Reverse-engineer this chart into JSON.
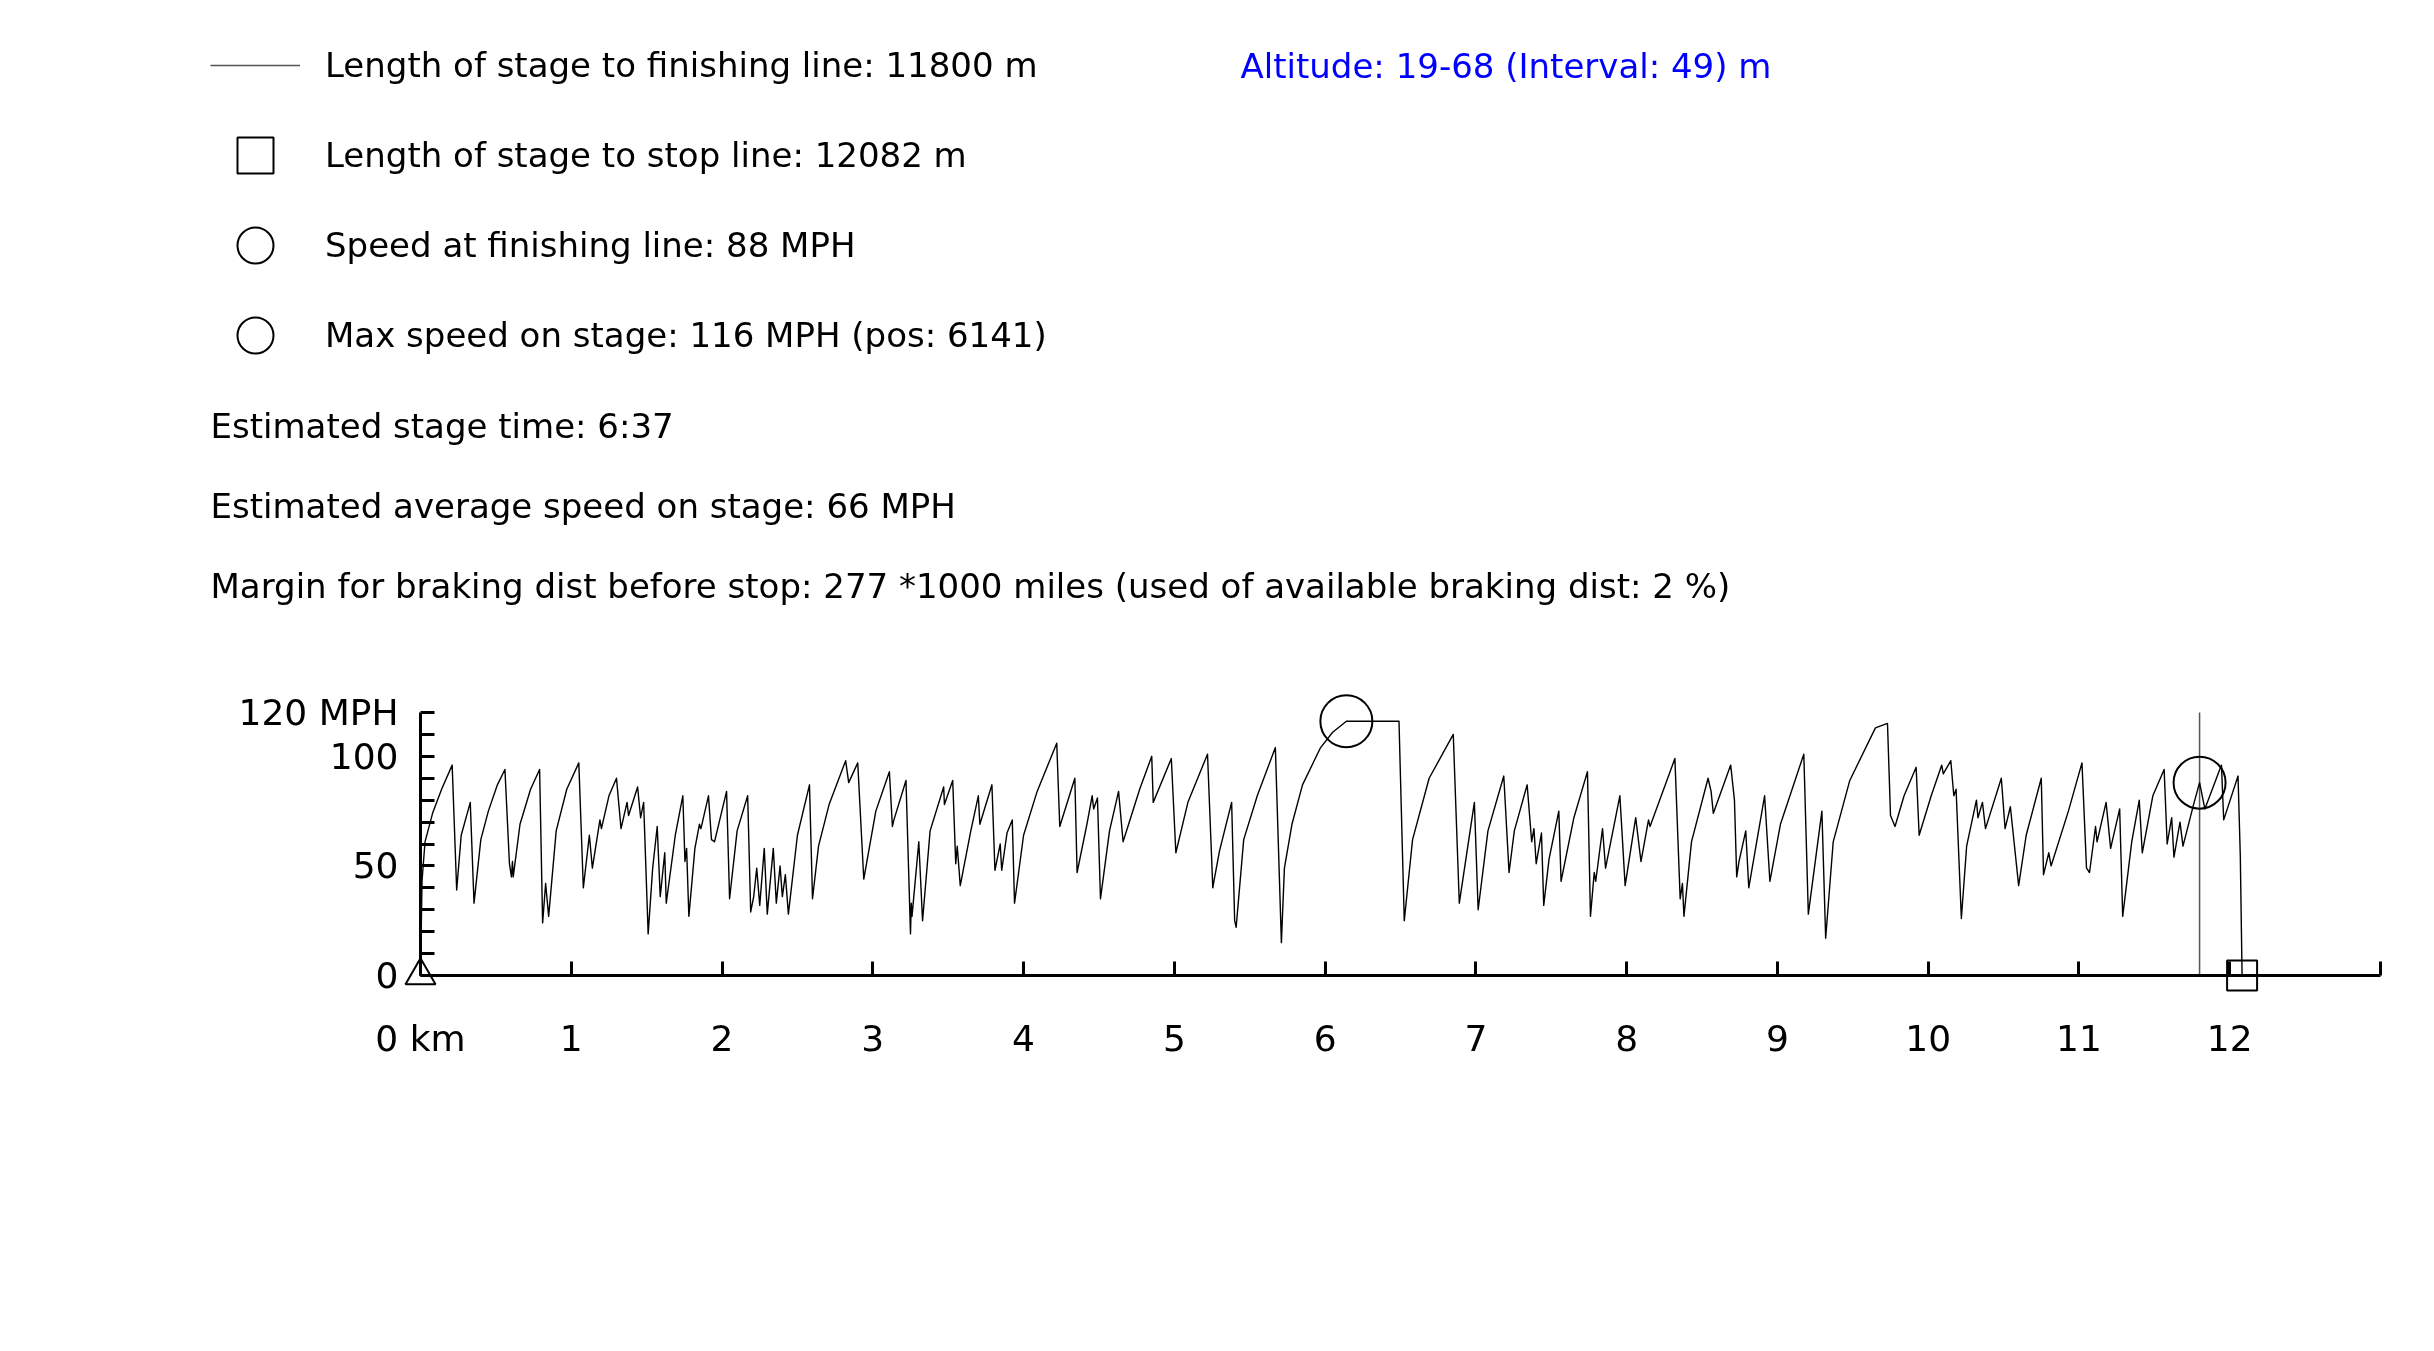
{
  "chart_data": {
    "type": "line",
    "subtitle": "Altitude: 19-68 (Interval: 49) m",
    "annotations": [
      "Estimated stage time: 6:37",
      "Estimated average speed on stage: 66 MPH",
      "Margin for braking dist before stop: 277 *1000 miles (used of available braking dist: 2 %)"
    ],
    "xlim": [
      0,
      13
    ],
    "xticks": [
      {
        "value": 0,
        "label": "0 km"
      },
      1,
      2,
      3,
      4,
      5,
      6,
      7,
      8,
      9,
      10,
      11,
      12,
      {
        "value": 13,
        "label": null
      }
    ],
    "ylim": [
      0,
      120
    ],
    "yticks": [
      0,
      {
        "value": 10,
        "label": null
      },
      {
        "value": 20,
        "label": null
      },
      {
        "value": 30,
        "label": null
      },
      {
        "value": 40,
        "label": null
      },
      50,
      {
        "value": 60,
        "label": null
      },
      {
        "value": 70,
        "label": null
      },
      {
        "value": 80,
        "label": null
      },
      {
        "value": 90,
        "label": null
      },
      100,
      {
        "value": 110,
        "label": null
      },
      {
        "value": 120,
        "label": "120 MPH"
      }
    ],
    "grid": false,
    "legend": "top left",
    "ref_lines": [
      {
        "axis": "x",
        "value": 11.8,
        "label": "Length of stage to finishing line: 11800 m",
        "color": "#555555"
      }
    ],
    "series": [
      {
        "type": "scatter",
        "marker": "triangle",
        "color": "#000000",
        "x": [
          0
        ],
        "values": [
          0
        ]
      },
      {
        "type": "scatter",
        "name": "Length of stage to stop line: 12082 m",
        "marker": "square",
        "color": "#000000",
        "x": [
          12.082
        ],
        "values": [
          0
        ]
      },
      {
        "type": "scatter",
        "name": "Speed at finishing line: 88 MPH",
        "marker": "circle",
        "color": "#000000",
        "x": [
          11.8
        ],
        "values": [
          88
        ]
      },
      {
        "type": "scatter",
        "name": "Max speed on stage: 116 MPH (pos: 6141)",
        "marker": "circle",
        "color": "#000000",
        "x": [
          6.141
        ],
        "values": [
          116
        ]
      },
      {
        "color": "#000000",
        "x": [
          0,
          0.01,
          0.03,
          0.08,
          0.14,
          0.21,
          0.24,
          0.27,
          0.33,
          0.355,
          0.4,
          0.45,
          0.51,
          0.56,
          0.59,
          0.603,
          0.61,
          0.615,
          0.66,
          0.73,
          0.79,
          0.81,
          0.83,
          0.85,
          0.9,
          0.97,
          1.05,
          1.08,
          1.12,
          1.14,
          1.19,
          1.2,
          1.25,
          1.3,
          1.33,
          1.37,
          1.38,
          1.44,
          1.46,
          1.48,
          1.51,
          1.54,
          1.57,
          1.59,
          1.62,
          1.63,
          1.69,
          1.74,
          1.754,
          1.765,
          1.78,
          1.82,
          1.85,
          1.86,
          1.91,
          1.93,
          1.95,
          2.03,
          2.05,
          2.1,
          2.17,
          2.19,
          2.21,
          2.23,
          2.25,
          2.28,
          2.3,
          2.34,
          2.36,
          2.385,
          2.4,
          2.42,
          2.44,
          2.5,
          2.58,
          2.6,
          2.64,
          2.71,
          2.82,
          2.84,
          2.9,
          2.94,
          3.02,
          3.11,
          3.13,
          3.14,
          3.22,
          3.25,
          3.255,
          3.26,
          3.305,
          3.33,
          3.38,
          3.47,
          3.475,
          3.53,
          3.55,
          3.56,
          3.58,
          3.65,
          3.7,
          3.71,
          3.79,
          3.81,
          3.845,
          3.855,
          3.89,
          3.925,
          3.94,
          4.0,
          4.09,
          4.22,
          4.24,
          4.34,
          4.355,
          4.42,
          4.455,
          4.465,
          4.49,
          4.51,
          4.57,
          4.63,
          4.66,
          4.77,
          4.85,
          4.86,
          4.98,
          5.01,
          5.09,
          5.22,
          5.255,
          5.265,
          5.3,
          5.38,
          5.4,
          5.41,
          5.46,
          5.55,
          5.67,
          5.71,
          5.73,
          5.78,
          5.85,
          5.97,
          6.05,
          6.141,
          6.49,
          6.525,
          6.58,
          6.69,
          6.85,
          6.89,
          6.99,
          7.015,
          7.08,
          7.185,
          7.22,
          7.255,
          7.34,
          7.37,
          7.385,
          7.4,
          7.435,
          7.45,
          7.485,
          7.55,
          7.565,
          7.65,
          7.74,
          7.76,
          7.785,
          7.795,
          7.84,
          7.86,
          7.955,
          7.99,
          8.06,
          8.095,
          8.145,
          8.155,
          8.32,
          8.355,
          8.37,
          8.38,
          8.43,
          8.54,
          8.56,
          8.575,
          8.69,
          8.715,
          8.73,
          8.745,
          8.79,
          8.81,
          8.915,
          8.95,
          9.02,
          9.175,
          9.205,
          9.295,
          9.32,
          9.37,
          9.48,
          9.65,
          9.73,
          9.75,
          9.78,
          9.84,
          9.92,
          9.94,
          10.02,
          10.09,
          10.1,
          10.15,
          10.17,
          10.185,
          10.22,
          10.255,
          10.32,
          10.33,
          10.36,
          10.38,
          10.485,
          10.51,
          10.545,
          10.6,
          10.65,
          10.75,
          10.765,
          10.8,
          10.815,
          10.93,
          11.02,
          11.05,
          11.07,
          11.11,
          11.12,
          11.18,
          11.21,
          11.27,
          11.29,
          11.35,
          11.4,
          11.42,
          11.49,
          11.565,
          11.585,
          11.615,
          11.63,
          11.67,
          11.69,
          11.76,
          11.8,
          11.835,
          11.945,
          11.96,
          12.055,
          12.07,
          12.082
        ],
        "values": [
          0,
          43,
          61,
          74,
          85,
          96,
          39,
          64,
          79,
          33,
          62,
          75,
          87,
          94,
          51,
          45,
          52,
          45,
          69,
          85,
          94,
          24,
          42,
          27,
          66,
          85,
          97,
          40,
          64,
          49,
          71,
          67,
          82,
          90,
          67,
          79,
          73,
          86,
          72,
          79,
          19,
          49,
          68,
          36,
          56,
          33,
          64,
          82,
          52,
          58,
          27,
          58,
          69,
          67,
          82,
          62,
          61,
          84,
          35,
          66,
          82,
          29,
          36,
          49,
          32,
          58,
          28,
          58,
          33,
          50,
          36,
          46,
          28,
          64,
          87,
          35,
          59,
          78,
          98,
          88,
          97,
          44,
          75,
          93,
          68,
          71,
          89,
          19,
          33,
          27,
          61,
          25,
          66,
          86,
          78,
          89,
          51,
          59,
          41,
          66,
          82,
          69,
          87,
          48,
          60,
          48,
          65,
          71,
          33,
          64,
          84,
          106,
          68,
          90,
          47,
          69,
          82,
          76,
          81,
          35,
          66,
          84,
          61,
          85,
          100,
          79,
          99,
          56,
          79,
          101,
          40,
          44,
          57,
          79,
          25,
          22,
          62,
          82,
          104,
          15,
          49,
          69,
          87,
          104,
          111,
          116,
          116,
          25,
          62,
          90,
          110,
          33,
          79,
          30,
          66,
          91,
          47,
          66,
          87,
          61,
          67,
          51,
          65,
          32,
          53,
          75,
          43,
          72,
          93,
          27,
          47,
          43,
          67,
          49,
          82,
          41,
          72,
          52,
          71,
          68,
          99,
          35,
          42,
          27,
          61,
          90,
          84,
          74,
          96,
          80,
          45,
          52,
          66,
          40,
          82,
          43,
          69,
          101,
          28,
          75,
          17,
          61,
          89,
          113,
          115,
          73,
          68,
          82,
          95,
          64,
          82,
          96,
          92,
          98,
          82,
          85,
          26,
          59,
          80,
          72,
          79,
          67,
          90,
          67,
          77,
          41,
          64,
          90,
          46,
          56,
          50,
          75,
          97,
          49,
          47,
          68,
          61,
          79,
          58,
          76,
          27,
          61,
          80,
          56,
          82,
          94,
          60,
          72,
          54,
          70,
          59,
          78,
          88,
          76,
          96,
          71,
          91,
          55,
          0
        ]
      }
    ]
  }
}
